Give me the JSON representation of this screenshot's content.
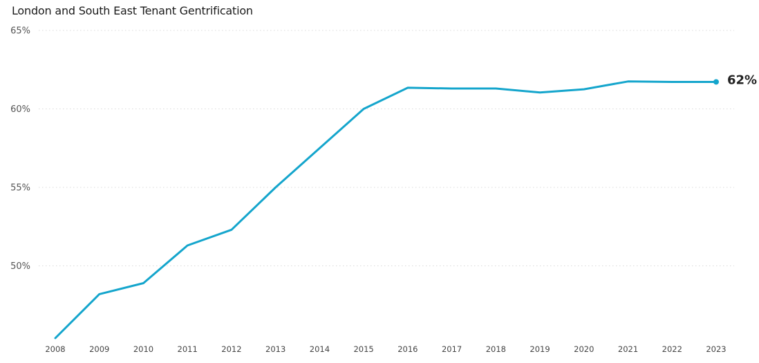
{
  "chart_data": {
    "type": "line",
    "title": "London and South East Tenant Gentrification",
    "xlabel": "",
    "ylabel": "",
    "x": [
      "2008",
      "2009",
      "2010",
      "2011",
      "2012",
      "2013",
      "2014",
      "2015",
      "2016",
      "2017",
      "2018",
      "2019",
      "2020",
      "2021",
      "2022",
      "2023"
    ],
    "series": [
      {
        "values": [
          45.4,
          48.2,
          48.9,
          51.3,
          52.3,
          55.0,
          57.5,
          60.0,
          61.35,
          61.3,
          61.3,
          61.05,
          61.25,
          61.75,
          61.72,
          61.72
        ],
        "color": "#14a5cc"
      }
    ],
    "ylim": [
      45.4,
      65
    ],
    "yticks": [
      50,
      55,
      60,
      65
    ],
    "ytick_labels": [
      "50%",
      "55%",
      "60%",
      "65%"
    ],
    "grid": "horizontal-dotted",
    "legend": "none",
    "end_label": "62%"
  }
}
